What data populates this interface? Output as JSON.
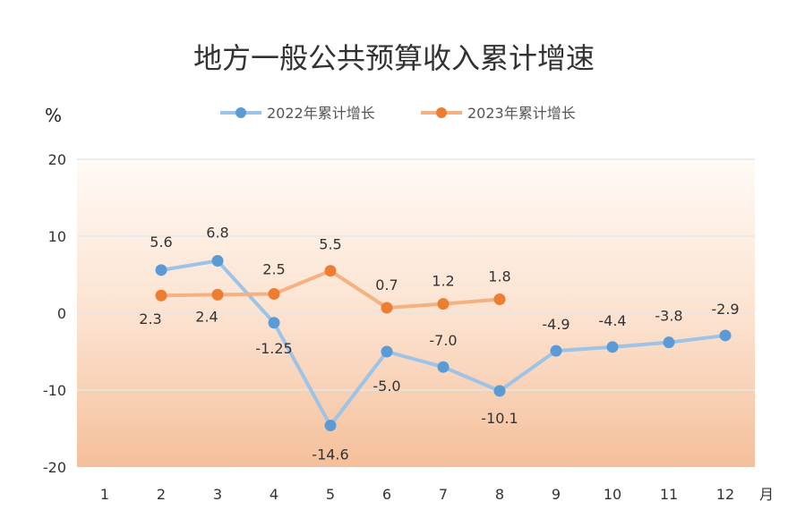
{
  "chart_data": {
    "type": "line",
    "title": "地方一般公共预算收入累计增速",
    "ylabel": "%",
    "xunit": "月",
    "ylim": [
      -20,
      20
    ],
    "yticks": [
      20,
      10,
      0,
      -10,
      -20
    ],
    "categories": [
      "1",
      "2",
      "3",
      "4",
      "5",
      "6",
      "7",
      "8",
      "9",
      "10",
      "11",
      "12"
    ],
    "legend_position": "top-center",
    "grid": true,
    "series": [
      {
        "name": "2022年累计增长",
        "color": "#5b9bd5",
        "line_color": "#9dc3e6",
        "values": [
          null,
          5.6,
          6.8,
          -1.25,
          -14.6,
          -5.0,
          -7.0,
          -10.1,
          -4.9,
          -4.4,
          -3.8,
          -2.9
        ],
        "labels": [
          "",
          "5.6",
          "6.8",
          "-1.25",
          "-14.6",
          "-5.0",
          "-7.0",
          "-10.1",
          "-4.9",
          "-4.4",
          "-3.8",
          "-2.9"
        ]
      },
      {
        "name": "2023年累计增长",
        "color": "#ed7d31",
        "line_color": "#f4b183",
        "values": [
          null,
          2.3,
          2.4,
          2.5,
          5.5,
          0.7,
          1.2,
          1.8,
          null,
          null,
          null,
          null
        ],
        "labels": [
          "",
          "2.3",
          "2.4",
          "2.5",
          "5.5",
          "0.7",
          "1.2",
          "1.8",
          "",
          "",
          "",
          ""
        ]
      }
    ]
  }
}
